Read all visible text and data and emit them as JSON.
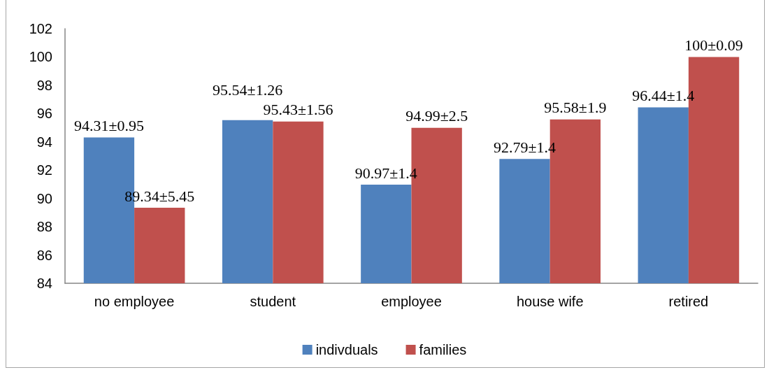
{
  "chart_data": {
    "type": "bar",
    "categories": [
      "no employee",
      "student",
      "employee",
      "house wife",
      "retired"
    ],
    "series": [
      {
        "name": "indivduals",
        "color": "#4f81bd",
        "values": [
          94.31,
          95.54,
          90.97,
          92.79,
          96.44
        ],
        "value_labels": [
          "94.31±0.95",
          "95.54±1.26",
          "90.97±1.4",
          "92.79±1.4",
          "96.44±1.4"
        ]
      },
      {
        "name": "families",
        "color": "#c0504d",
        "values": [
          89.34,
          95.43,
          94.99,
          95.58,
          100
        ],
        "value_labels": [
          "89.34±5.45",
          "95.43±1.56",
          "94.99±2.5",
          "95.58±1.9",
          "100±0.09"
        ]
      }
    ],
    "ylim": [
      84,
      102
    ],
    "yticks": [
      84,
      86,
      88,
      90,
      92,
      94,
      96,
      98,
      100,
      102
    ],
    "grid": false,
    "legend": "bottom"
  }
}
